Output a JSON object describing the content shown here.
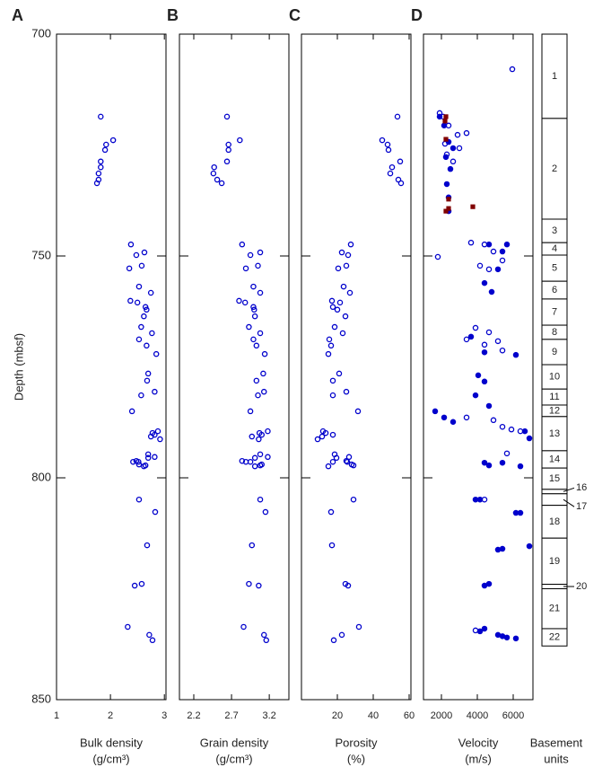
{
  "chart_data": [
    {
      "type": "scatter",
      "panel": "A",
      "y_label": "Depth (mbsf)",
      "x_label": [
        "Bulk density",
        "(g/cm³)"
      ],
      "xlim": [
        1,
        3.03
      ],
      "xticks": [
        1,
        2,
        3
      ],
      "ylim": [
        700,
        850
      ],
      "y_inverted": true,
      "yticks": [
        700,
        750,
        800,
        850
      ],
      "series": [
        {
          "color": "#0000cc",
          "marker": "open-circle",
          "x": [
            1.82,
            2.05,
            1.92,
            1.9,
            1.82,
            1.82,
            1.78,
            1.78,
            1.75,
            2.38,
            2.63,
            2.48,
            2.58,
            2.35,
            2.53,
            2.75,
            2.37,
            2.5,
            2.65,
            2.67,
            2.62,
            2.57,
            2.77,
            2.53,
            2.67,
            2.85,
            2.7,
            2.68,
            2.82,
            2.57,
            2.4,
            2.88,
            2.78,
            2.82,
            2.75,
            2.92,
            2.7,
            2.82,
            2.7,
            2.48,
            2.42,
            2.52,
            2.53,
            2.65,
            2.62,
            2.53,
            2.83,
            2.68,
            2.58,
            2.45,
            2.32,
            2.72,
            2.78
          ],
          "y": [
            718.6,
            723.9,
            724.9,
            726.1,
            728.7,
            730.0,
            731.4,
            732.8,
            733.6,
            747.4,
            749.2,
            749.8,
            752.2,
            752.8,
            756.9,
            758.3,
            760.1,
            760.5,
            761.5,
            762.1,
            763.6,
            766.0,
            767.4,
            768.8,
            770.2,
            772.1,
            776.5,
            778.1,
            780.6,
            781.4,
            785.0,
            789.5,
            789.9,
            790.3,
            790.7,
            791.3,
            794.7,
            795.3,
            795.5,
            796.2,
            796.4,
            796.4,
            797.0,
            797.2,
            797.4,
            804.9,
            807.7,
            815.2,
            823.9,
            824.3,
            833.6,
            835.4,
            836.6
          ]
        }
      ]
    },
    {
      "type": "scatter",
      "panel": "B",
      "x_label": [
        "Grain density",
        "(g/cm³)"
      ],
      "xlim": [
        2.01,
        3.46
      ],
      "xticks": [
        2.2,
        2.7,
        3.2
      ],
      "ylim": [
        700,
        850
      ],
      "y_inverted": true,
      "series": [
        {
          "color": "#0000cc",
          "marker": "open-circle",
          "x": [
            2.64,
            2.81,
            2.66,
            2.66,
            2.64,
            2.47,
            2.46,
            2.51,
            2.57,
            2.84,
            3.08,
            2.95,
            3.05,
            2.89,
            2.99,
            3.08,
            2.8,
            2.88,
            2.99,
            3.0,
            3.01,
            2.93,
            3.08,
            2.99,
            3.03,
            3.14,
            3.12,
            3.03,
            3.13,
            3.05,
            2.95,
            3.18,
            3.07,
            3.1,
            2.97,
            3.06,
            3.08,
            3.18,
            3.01,
            2.84,
            2.89,
            2.95,
            3.1,
            3.08,
            3.01,
            3.08,
            3.15,
            2.97,
            2.93,
            3.06,
            2.86,
            3.13,
            3.16
          ],
          "y": [
            718.6,
            723.9,
            724.9,
            726.1,
            728.7,
            730.0,
            731.4,
            732.8,
            733.6,
            747.4,
            749.2,
            749.8,
            752.2,
            752.8,
            756.9,
            758.3,
            760.1,
            760.5,
            761.5,
            762.1,
            763.6,
            766.0,
            767.4,
            768.8,
            770.2,
            772.1,
            776.5,
            778.1,
            780.6,
            781.4,
            785.0,
            789.5,
            789.9,
            790.3,
            790.7,
            791.3,
            794.7,
            795.3,
            795.5,
            796.2,
            796.4,
            796.4,
            797.0,
            797.2,
            797.4,
            804.9,
            807.7,
            815.2,
            823.9,
            824.3,
            833.6,
            835.4,
            836.6
          ]
        }
      ]
    },
    {
      "type": "scatter",
      "panel": "C",
      "x_label": [
        "Porosity",
        "(%)"
      ],
      "xlim": [
        0,
        61
      ],
      "xticks": [
        20,
        40,
        60
      ],
      "ylim": [
        700,
        850
      ],
      "y_inverted": true,
      "series": [
        {
          "color": "#0000cc",
          "marker": "open-circle",
          "x": [
            53.5,
            45,
            48,
            48.5,
            55,
            50.5,
            49.5,
            54,
            55.5,
            27.5,
            22.5,
            26,
            25,
            20.5,
            23.5,
            27,
            17,
            21.5,
            17.5,
            20,
            24.5,
            18.5,
            23,
            15.5,
            16.5,
            15,
            21,
            17.5,
            25,
            17.5,
            31.5,
            12,
            13.5,
            17.5,
            11.5,
            9,
            18.5,
            26.5,
            19.5,
            25,
            17.5,
            25.5,
            28,
            29,
            15,
            29,
            16.5,
            17,
            24.5,
            26,
            32,
            22.5,
            18
          ],
          "y": [
            718.6,
            723.9,
            724.9,
            726.1,
            728.7,
            730.0,
            731.4,
            732.8,
            733.6,
            747.4,
            749.2,
            749.8,
            752.2,
            752.8,
            756.9,
            758.3,
            760.1,
            760.5,
            761.5,
            762.1,
            763.6,
            766.0,
            767.4,
            768.8,
            770.2,
            772.1,
            776.5,
            778.1,
            780.6,
            781.4,
            785.0,
            789.5,
            789.9,
            790.3,
            790.7,
            791.3,
            794.7,
            795.3,
            795.5,
            796.2,
            796.4,
            796.4,
            797.0,
            797.2,
            797.4,
            804.9,
            807.7,
            815.2,
            823.9,
            824.3,
            833.6,
            835.4,
            836.6
          ]
        }
      ]
    },
    {
      "type": "scatter",
      "panel": "D",
      "x_label": [
        "Velocity",
        "(m/s)"
      ],
      "xlim": [
        1000,
        7100
      ],
      "xticks": [
        2000,
        4000,
        6000
      ],
      "ylim": [
        700,
        850
      ],
      "y_inverted": true,
      "series": [
        {
          "color": "#0000cc",
          "marker": "open-circle",
          "x": [
            5950,
            1900,
            2100,
            2400,
            2900,
            3400,
            2200,
            3000,
            2300,
            2650,
            1800,
            4400,
            4900,
            5400,
            4150,
            3650,
            4650,
            3900,
            4650,
            5150,
            5400,
            3400,
            4400,
            4900,
            5400,
            5900,
            6400,
            3400,
            5650,
            4400,
            3900
          ],
          "y": [
            707.9,
            717.8,
            718.6,
            720.6,
            722.7,
            722.3,
            724.7,
            725.7,
            727.1,
            728.7,
            750.2,
            747.4,
            749.0,
            751.0,
            752.2,
            747.0,
            753.0,
            766.2,
            767.2,
            769.2,
            771.3,
            768.8,
            770.0,
            787.0,
            788.5,
            789.1,
            789.5,
            786.4,
            794.5,
            804.9,
            834.4
          ]
        },
        {
          "color": "#0000cc",
          "marker": "filled-circle",
          "x": [
            1900,
            2150,
            2400,
            2650,
            2250,
            2500,
            2300,
            2400,
            2400,
            4650,
            5400,
            5150,
            5650,
            4400,
            4800,
            3650,
            4400,
            6150,
            4050,
            4400,
            3900,
            4650,
            1650,
            2150,
            2650,
            6650,
            6900,
            4400,
            4650,
            5400,
            6400,
            3900,
            4150,
            6150,
            6400,
            5150,
            5400,
            6900,
            4400,
            4650,
            4150,
            4400,
            5150,
            5400,
            6150,
            5650
          ],
          "y": [
            718.6,
            720.6,
            724.3,
            725.7,
            727.7,
            730.4,
            733.8,
            736.8,
            739.9,
            747.4,
            749.0,
            753.0,
            747.4,
            756.1,
            758.1,
            768.2,
            771.7,
            772.3,
            776.9,
            778.3,
            781.4,
            783.8,
            785.0,
            786.4,
            787.4,
            789.5,
            791.1,
            796.6,
            797.2,
            796.6,
            797.4,
            804.9,
            804.9,
            807.9,
            807.9,
            816.2,
            816.0,
            815.4,
            824.3,
            823.9,
            834.6,
            834.0,
            835.4,
            835.7,
            836.2,
            836.0
          ]
        },
        {
          "color": "#800000",
          "marker": "square",
          "x": [
            2250,
            2200,
            2250,
            2400,
            2400,
            3750,
            2250
          ],
          "y": [
            718.6,
            719.6,
            723.7,
            737.2,
            739.3,
            738.9,
            739.9
          ]
        }
      ]
    }
  ],
  "basement_units": {
    "title": [
      "Basement",
      "units"
    ],
    "units": [
      {
        "label": "1",
        "top": 700,
        "bottom": 719
      },
      {
        "label": "2",
        "top": 719,
        "bottom": 741.7
      },
      {
        "label": "3",
        "top": 741.7,
        "bottom": 747
      },
      {
        "label": "4",
        "top": 747,
        "bottom": 749.8
      },
      {
        "label": "5",
        "top": 749.8,
        "bottom": 755.7
      },
      {
        "label": "6",
        "top": 755.7,
        "bottom": 759.7
      },
      {
        "label": "7",
        "top": 759.7,
        "bottom": 765.6
      },
      {
        "label": "8",
        "top": 765.6,
        "bottom": 768.8
      },
      {
        "label": "9",
        "top": 768.8,
        "bottom": 774.5
      },
      {
        "label": "10",
        "top": 774.5,
        "bottom": 780
      },
      {
        "label": "11",
        "top": 780,
        "bottom": 783.6
      },
      {
        "label": "12",
        "top": 783.6,
        "bottom": 786.2
      },
      {
        "label": "13",
        "top": 786.2,
        "bottom": 793.9
      },
      {
        "label": "14",
        "top": 793.9,
        "bottom": 797.8
      },
      {
        "label": "15",
        "top": 797.8,
        "bottom": 802.6
      },
      {
        "label": "16",
        "top": 802.6,
        "bottom": 803.6,
        "outside": true
      },
      {
        "label": "17",
        "top": 803.6,
        "bottom": 806.2,
        "outside": true
      },
      {
        "label": "18",
        "top": 806.2,
        "bottom": 813.6
      },
      {
        "label": "19",
        "top": 813.6,
        "bottom": 824
      },
      {
        "label": "20",
        "top": 824,
        "bottom": 825,
        "outside": true
      },
      {
        "label": "21",
        "top": 825,
        "bottom": 834
      },
      {
        "label": "22",
        "top": 834,
        "bottom": 837.9
      }
    ]
  }
}
